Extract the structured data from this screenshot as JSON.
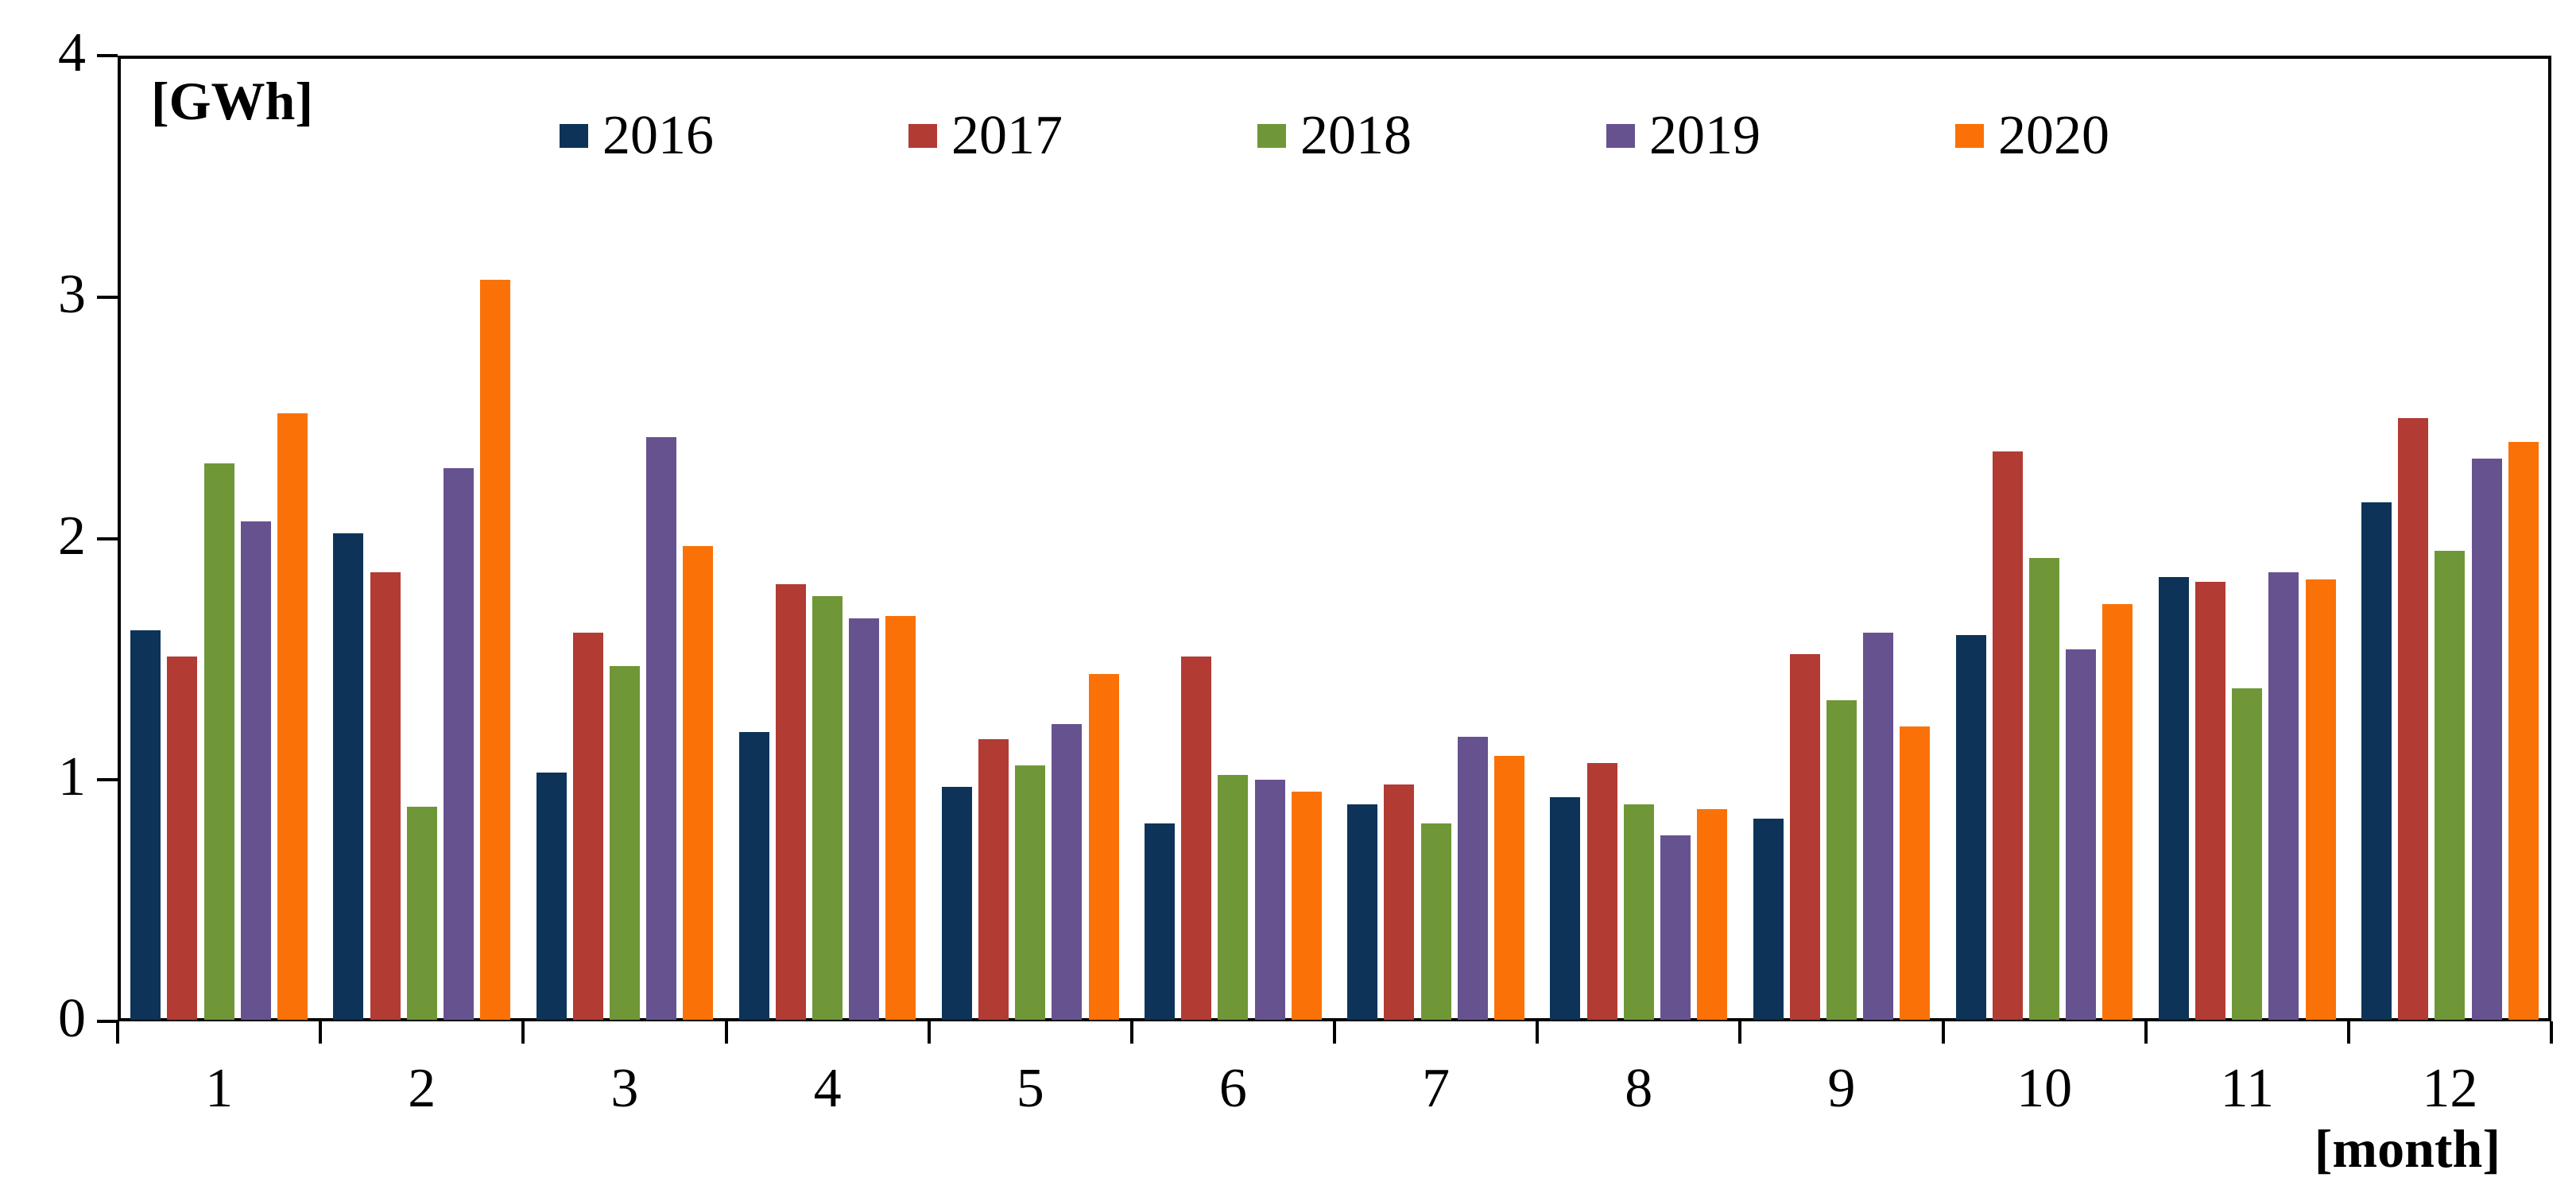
{
  "chart_data": {
    "type": "bar",
    "title": "",
    "ylabel": "[GWh]",
    "xlabel": "[month]",
    "ylim": [
      0,
      4
    ],
    "yticks": [
      "0",
      "1",
      "2",
      "3",
      "4"
    ],
    "categories": [
      "1",
      "2",
      "3",
      "4",
      "5",
      "6",
      "7",
      "8",
      "9",
      "10",
      "11",
      "12"
    ],
    "grid": false,
    "legend_position": "top-center-inside",
    "series": [
      {
        "name": "2016",
        "color": "#0D3458",
        "values": [
          1.62,
          2.02,
          1.03,
          1.2,
          0.97,
          0.82,
          0.9,
          0.93,
          0.84,
          1.6,
          1.84,
          2.15
        ]
      },
      {
        "name": "2017",
        "color": "#B23B34",
        "values": [
          1.51,
          1.86,
          1.61,
          1.81,
          1.17,
          1.51,
          0.98,
          1.07,
          1.52,
          2.36,
          1.82,
          2.5
        ]
      },
      {
        "name": "2018",
        "color": "#6F9737",
        "values": [
          2.31,
          0.89,
          1.47,
          1.76,
          1.06,
          1.02,
          0.82,
          0.9,
          1.33,
          1.92,
          1.38,
          1.95
        ]
      },
      {
        "name": "2019",
        "color": "#675290",
        "values": [
          2.07,
          2.29,
          2.42,
          1.67,
          1.23,
          1.0,
          1.18,
          0.77,
          1.61,
          1.54,
          1.86,
          2.33
        ]
      },
      {
        "name": "2020",
        "color": "#FA7207",
        "values": [
          2.52,
          3.07,
          1.97,
          1.68,
          1.44,
          0.95,
          1.1,
          0.88,
          1.22,
          1.73,
          1.83,
          2.4
        ]
      }
    ]
  }
}
